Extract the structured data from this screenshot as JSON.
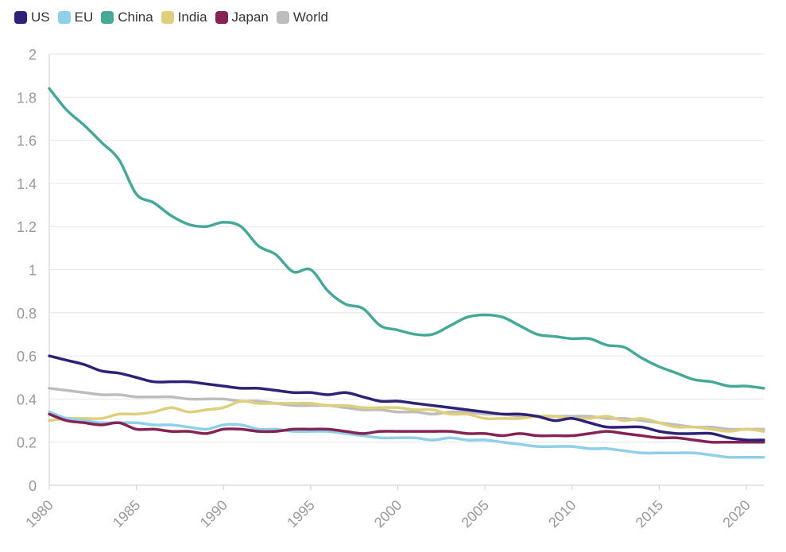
{
  "chart_data": {
    "type": "line",
    "title": "",
    "xlabel": "",
    "ylabel": "",
    "xlim": [
      1980,
      2021
    ],
    "ylim": [
      0,
      2
    ],
    "yticks": [
      "0",
      "0.2",
      "0.4",
      "0.6",
      "0.8",
      "1",
      "1.2",
      "1.4",
      "1.6",
      "1.8",
      "2"
    ],
    "xticks": [
      "1980",
      "1985",
      "1990",
      "1995",
      "2000",
      "2005",
      "2010",
      "2015",
      "2020"
    ],
    "x": [
      1980,
      1981,
      1982,
      1983,
      1984,
      1985,
      1986,
      1987,
      1988,
      1989,
      1990,
      1991,
      1992,
      1993,
      1994,
      1995,
      1996,
      1997,
      1998,
      1999,
      2000,
      2001,
      2002,
      2003,
      2004,
      2005,
      2006,
      2007,
      2008,
      2009,
      2010,
      2011,
      2012,
      2013,
      2014,
      2015,
      2016,
      2017,
      2018,
      2019,
      2020,
      2021
    ],
    "legend_position": "top-left",
    "series": [
      {
        "name": "US",
        "color": "#2e2277",
        "values": [
          0.6,
          0.58,
          0.56,
          0.53,
          0.52,
          0.5,
          0.48,
          0.48,
          0.48,
          0.47,
          0.46,
          0.45,
          0.45,
          0.44,
          0.43,
          0.43,
          0.42,
          0.43,
          0.41,
          0.39,
          0.39,
          0.38,
          0.37,
          0.36,
          0.35,
          0.34,
          0.33,
          0.33,
          0.32,
          0.3,
          0.31,
          0.29,
          0.27,
          0.27,
          0.27,
          0.25,
          0.24,
          0.24,
          0.24,
          0.22,
          0.21,
          0.21
        ]
      },
      {
        "name": "EU",
        "color": "#8ecfea",
        "values": [
          0.34,
          0.31,
          0.3,
          0.29,
          0.29,
          0.29,
          0.28,
          0.28,
          0.27,
          0.26,
          0.28,
          0.28,
          0.26,
          0.26,
          0.25,
          0.25,
          0.25,
          0.24,
          0.23,
          0.22,
          0.22,
          0.22,
          0.21,
          0.22,
          0.21,
          0.21,
          0.2,
          0.19,
          0.18,
          0.18,
          0.18,
          0.17,
          0.17,
          0.16,
          0.15,
          0.15,
          0.15,
          0.15,
          0.14,
          0.13,
          0.13,
          0.13
        ]
      },
      {
        "name": "China",
        "color": "#46a997",
        "values": [
          1.84,
          1.74,
          1.67,
          1.59,
          1.51,
          1.35,
          1.31,
          1.25,
          1.21,
          1.2,
          1.22,
          1.2,
          1.11,
          1.07,
          0.99,
          1.0,
          0.9,
          0.84,
          0.82,
          0.74,
          0.72,
          0.7,
          0.7,
          0.74,
          0.78,
          0.79,
          0.78,
          0.74,
          0.7,
          0.69,
          0.68,
          0.68,
          0.65,
          0.64,
          0.59,
          0.55,
          0.52,
          0.49,
          0.48,
          0.46,
          0.46,
          0.45
        ]
      },
      {
        "name": "India",
        "color": "#dfcf7c",
        "values": [
          0.3,
          0.31,
          0.31,
          0.31,
          0.33,
          0.33,
          0.34,
          0.36,
          0.34,
          0.35,
          0.36,
          0.39,
          0.38,
          0.38,
          0.38,
          0.38,
          0.37,
          0.37,
          0.36,
          0.36,
          0.36,
          0.35,
          0.35,
          0.33,
          0.33,
          0.31,
          0.31,
          0.31,
          0.32,
          0.32,
          0.31,
          0.31,
          0.32,
          0.3,
          0.31,
          0.29,
          0.27,
          0.27,
          0.26,
          0.25,
          0.26,
          0.25
        ]
      },
      {
        "name": "Japan",
        "color": "#862355",
        "values": [
          0.33,
          0.3,
          0.29,
          0.28,
          0.29,
          0.26,
          0.26,
          0.25,
          0.25,
          0.24,
          0.26,
          0.26,
          0.25,
          0.25,
          0.26,
          0.26,
          0.26,
          0.25,
          0.24,
          0.25,
          0.25,
          0.25,
          0.25,
          0.25,
          0.24,
          0.24,
          0.23,
          0.24,
          0.23,
          0.23,
          0.23,
          0.24,
          0.25,
          0.24,
          0.23,
          0.22,
          0.22,
          0.21,
          0.2,
          0.2,
          0.2,
          0.2
        ]
      },
      {
        "name": "World",
        "color": "#bdbdbd",
        "values": [
          0.45,
          0.44,
          0.43,
          0.42,
          0.42,
          0.41,
          0.41,
          0.41,
          0.4,
          0.4,
          0.4,
          0.39,
          0.39,
          0.38,
          0.37,
          0.37,
          0.37,
          0.36,
          0.35,
          0.35,
          0.34,
          0.34,
          0.33,
          0.34,
          0.34,
          0.33,
          0.33,
          0.32,
          0.32,
          0.32,
          0.32,
          0.32,
          0.31,
          0.31,
          0.3,
          0.29,
          0.28,
          0.27,
          0.27,
          0.26,
          0.26,
          0.26
        ]
      }
    ]
  }
}
